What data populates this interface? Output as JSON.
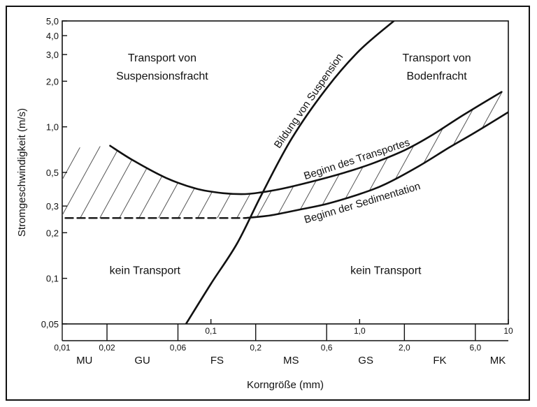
{
  "chart_data": {
    "type": "line",
    "title": "",
    "xlabel": "Korngröße (mm)",
    "ylabel": "Stromgeschwindigkeit (m/s)",
    "x_scale": "log",
    "y_scale": "log",
    "xlim": [
      0.01,
      10
    ],
    "ylim": [
      0.05,
      5.0
    ],
    "grid": false,
    "x_ticks_upper": [
      {
        "value": 0.1,
        "label": "0,1"
      },
      {
        "value": 1.0,
        "label": "1,0"
      },
      {
        "value": 10,
        "label": "10"
      }
    ],
    "x_ticks_lower": [
      {
        "value": 0.01,
        "label": "0,01"
      },
      {
        "value": 0.02,
        "label": "0,02"
      },
      {
        "value": 0.06,
        "label": "0,06"
      },
      {
        "value": 0.2,
        "label": "0,2"
      },
      {
        "value": 0.6,
        "label": "0,6"
      },
      {
        "value": 2.0,
        "label": "2,0"
      },
      {
        "value": 6.0,
        "label": "6,0"
      }
    ],
    "y_ticks": [
      {
        "value": 5.0,
        "label": "5,0"
      },
      {
        "value": 4.0,
        "label": "4,0"
      },
      {
        "value": 3.0,
        "label": "3,0"
      },
      {
        "value": 2.0,
        "label": "2,0"
      },
      {
        "value": 1.0,
        "label": "1,0"
      },
      {
        "value": 0.5,
        "label": "0,5"
      },
      {
        "value": 0.3,
        "label": "0,3"
      },
      {
        "value": 0.2,
        "label": "0,2"
      },
      {
        "value": 0.1,
        "label": "0,1"
      },
      {
        "value": 0.05,
        "label": "0,05"
      }
    ],
    "grain_classes": [
      {
        "label": "MU",
        "x": 0.0141
      },
      {
        "label": "GU",
        "x": 0.0346
      },
      {
        "label": "FS",
        "x": 0.11
      },
      {
        "label": "MS",
        "x": 0.346
      },
      {
        "label": "GS",
        "x": 1.1
      },
      {
        "label": "FK",
        "x": 3.46
      },
      {
        "label": "MK",
        "x": 8.5
      }
    ],
    "series": [
      {
        "name": "Bildung von Suspension",
        "x": [
          0.068,
          0.1,
          0.15,
          0.22,
          0.35,
          0.6,
          1.0,
          1.7
        ],
        "y": [
          0.05,
          0.092,
          0.17,
          0.36,
          0.84,
          1.8,
          3.2,
          5.0
        ]
      },
      {
        "name": "Beginn des Transportes",
        "x": [
          0.021,
          0.03,
          0.05,
          0.08,
          0.12,
          0.17,
          0.22,
          0.3,
          0.5,
          0.8,
          1.2,
          2.0,
          3.0,
          5.0,
          9.0
        ],
        "y": [
          0.75,
          0.6,
          0.46,
          0.39,
          0.365,
          0.36,
          0.37,
          0.39,
          0.44,
          0.5,
          0.57,
          0.7,
          0.87,
          1.2,
          1.7
        ]
      },
      {
        "name": "Beginn der Sedimentation",
        "x": [
          0.17,
          0.25,
          0.4,
          0.6,
          1.0,
          1.5,
          2.5,
          4.0,
          6.0,
          10
        ],
        "y": [
          0.25,
          0.26,
          0.285,
          0.31,
          0.36,
          0.42,
          0.55,
          0.73,
          0.92,
          1.25
        ]
      },
      {
        "name": "",
        "style": "dashed",
        "x": [
          0.0105,
          0.17
        ],
        "y": [
          0.25,
          0.25
        ]
      }
    ],
    "annotations": [
      {
        "text": "Transport von",
        "x": 0.047,
        "y": 2.7
      },
      {
        "text": "Suspensionsfracht",
        "x": 0.047,
        "y": 2.05
      },
      {
        "text": "Transport von",
        "x": 3.3,
        "y": 2.7
      },
      {
        "text": "Bodenfracht",
        "x": 3.3,
        "y": 2.05
      },
      {
        "text": "kein Transport",
        "x": 0.036,
        "y": 0.107
      },
      {
        "text": "kein Transport",
        "x": 1.5,
        "y": 0.107
      }
    ]
  }
}
